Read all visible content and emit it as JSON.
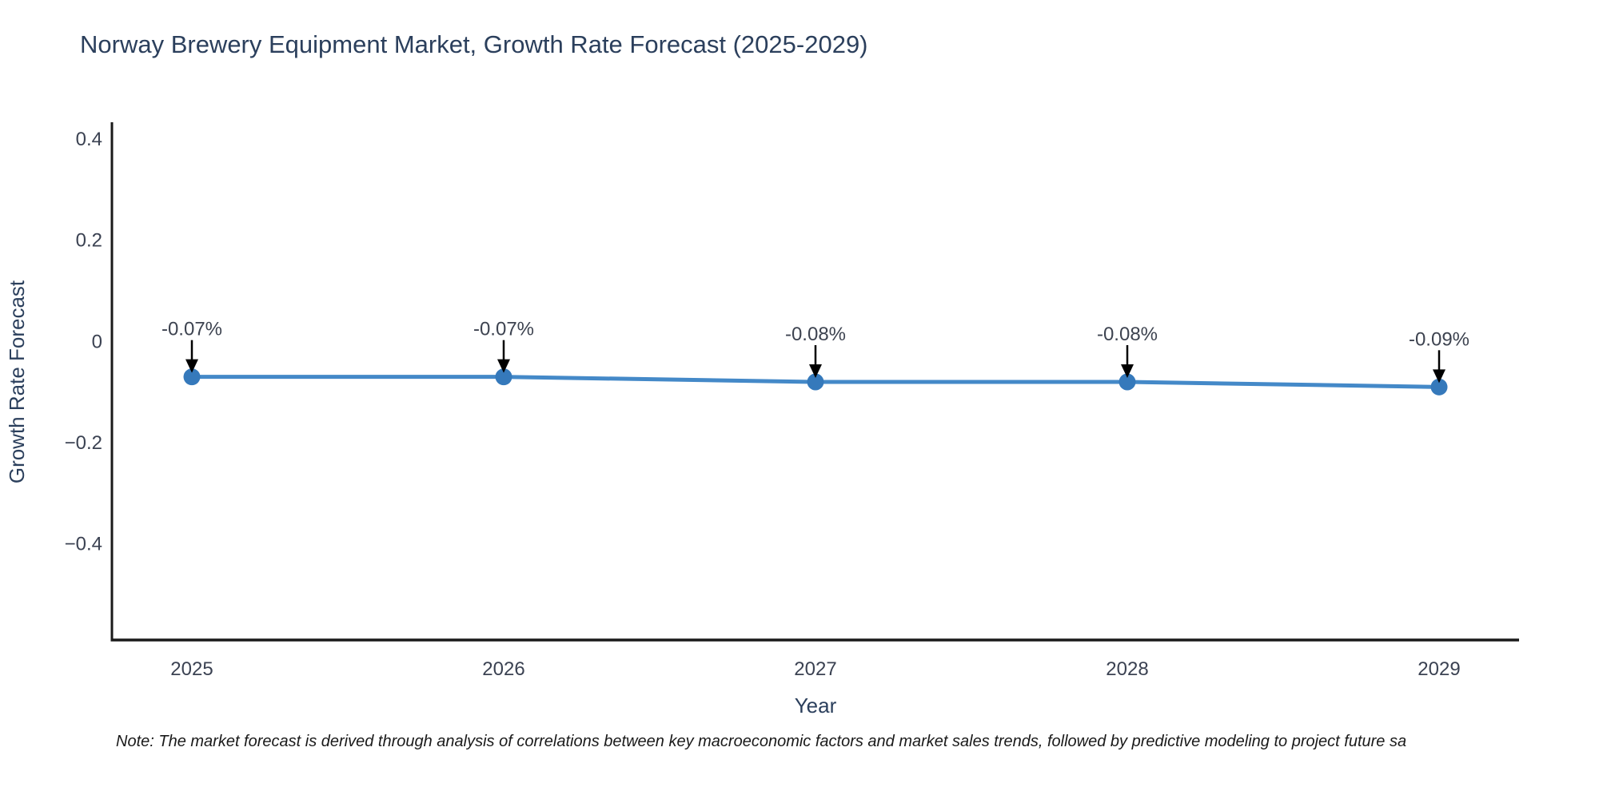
{
  "title": "Norway Brewery Equipment Market, Growth Rate Forecast (2025-2029)",
  "note": "Note: The market forecast is derived through analysis of correlations between key macroeconomic factors and market sales trends, followed by predictive modeling to project future sa",
  "x_axis": {
    "label": "Year",
    "ticks": [
      "2025",
      "2026",
      "2027",
      "2028",
      "2029"
    ]
  },
  "y_axis": {
    "label": "Growth Rate Forecast",
    "ticks": [
      "0.4",
      "0.2",
      "0",
      "−0.2",
      "−0.4"
    ],
    "tick_values": [
      0.4,
      0.2,
      0,
      -0.2,
      -0.4
    ]
  },
  "colors": {
    "line": "#4489c8",
    "marker": "#3579bb",
    "axis_line": "#1a1a1a",
    "title_text": "#2b3f5c",
    "axis_title_text": "#2b3f5c",
    "tick_text": "#3b4252",
    "annotation_text": "#3d4350",
    "arrow": "#000000",
    "background": "#ffffff"
  },
  "chart_data": {
    "type": "line",
    "title": "Norway Brewery Equipment Market, Growth Rate Forecast (2025-2029)",
    "xlabel": "Year",
    "ylabel": "Growth Rate Forecast",
    "x": [
      2025,
      2026,
      2027,
      2028,
      2029
    ],
    "categories": [
      "2025",
      "2026",
      "2027",
      "2028",
      "2029"
    ],
    "values": [
      -0.07,
      -0.07,
      -0.08,
      -0.08,
      -0.09
    ],
    "point_labels": [
      "-0.07%",
      "-0.07%",
      "-0.08%",
      "-0.08%",
      "-0.09%"
    ],
    "units": "percent",
    "y_ticks": [
      0.4,
      0.2,
      0,
      -0.2,
      -0.4
    ],
    "ylim": [
      -0.59,
      0.43
    ],
    "grid": false,
    "legend": "none",
    "annotations": "value labels with downward arrows above each point"
  }
}
